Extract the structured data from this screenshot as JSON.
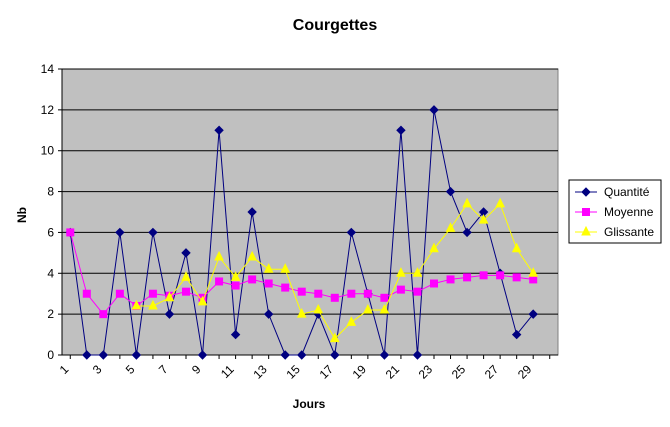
{
  "chart_data": {
    "type": "line",
    "title": "Courgettes",
    "xlabel": "Jours",
    "ylabel": "Nb",
    "ylim": [
      0,
      14
    ],
    "yticks": [
      0,
      2,
      4,
      6,
      8,
      10,
      12,
      14
    ],
    "xlim": [
      1,
      30
    ],
    "xticks": [
      1,
      3,
      5,
      7,
      9,
      11,
      13,
      15,
      17,
      19,
      21,
      23,
      25,
      27,
      29
    ],
    "grid": "horizontal",
    "plot_background": "#C0C0C0",
    "legend_position": "right",
    "x": [
      1,
      2,
      3,
      4,
      5,
      6,
      7,
      8,
      9,
      10,
      11,
      12,
      13,
      14,
      15,
      16,
      17,
      18,
      19,
      20,
      21,
      22,
      23,
      24,
      25,
      26,
      27,
      28,
      29,
      30
    ],
    "series": [
      {
        "name": "Quantité",
        "color": "#000080",
        "marker": "diamond",
        "values": [
          6,
          0,
          0,
          6,
          0,
          6,
          2,
          5,
          0,
          11,
          1,
          7,
          2,
          0,
          0,
          2,
          0,
          6,
          3,
          0,
          11,
          0,
          12,
          8,
          6,
          7,
          4,
          1,
          2,
          null
        ]
      },
      {
        "name": "Moyenne",
        "color": "#FF00FF",
        "marker": "square",
        "values": [
          6,
          3,
          2,
          3,
          2.4,
          3,
          2.9,
          3.1,
          2.8,
          3.6,
          3.4,
          3.7,
          3.5,
          3.3,
          3.1,
          3,
          2.8,
          3,
          3,
          2.8,
          3.2,
          3.1,
          3.5,
          3.7,
          3.8,
          3.9,
          3.9,
          3.8,
          3.7,
          null
        ]
      },
      {
        "name": "Glissante",
        "color": "#FFFF00",
        "marker": "triangle",
        "values": [
          null,
          null,
          null,
          null,
          2.4,
          2.4,
          2.8,
          3.8,
          2.6,
          4.8,
          3.8,
          4.8,
          4.2,
          4.2,
          2,
          2.2,
          0.8,
          1.6,
          2.2,
          2.2,
          4,
          4,
          5.2,
          6.2,
          7.4,
          6.6,
          7.4,
          5.2,
          4,
          null
        ]
      }
    ]
  }
}
